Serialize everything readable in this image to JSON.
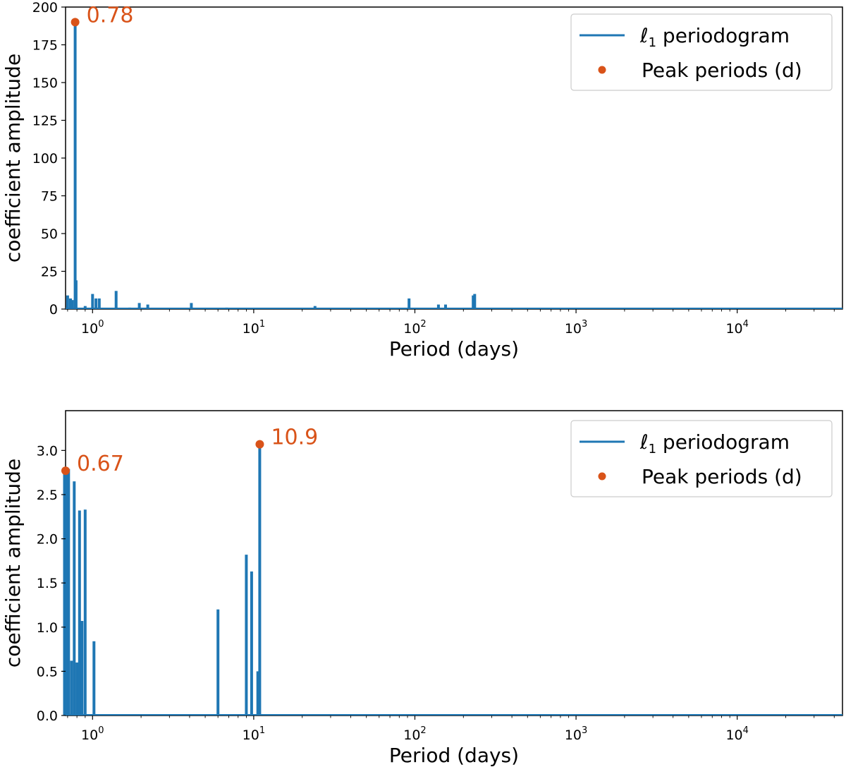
{
  "colors": {
    "series": "#1f77b4",
    "peak": "#d95319",
    "axis": "#000000",
    "legend_border": "#cccccc"
  },
  "chart_data": [
    {
      "type": "line",
      "xscale": "log",
      "xlabel": "Period (days)",
      "ylabel": "coefficient amplitude",
      "xlim": [
        0.68,
        45000
      ],
      "ylim": [
        0,
        200
      ],
      "yticks": [
        0,
        25,
        50,
        75,
        100,
        125,
        150,
        175,
        200
      ],
      "ytick_labels": [
        "0",
        "25",
        "50",
        "75",
        "100",
        "125",
        "150",
        "175",
        "200"
      ],
      "xtick_labels": [
        {
          "base": "10",
          "exp": "0",
          "value": 1
        },
        {
          "base": "10",
          "exp": "1",
          "value": 10
        },
        {
          "base": "10",
          "exp": "2",
          "value": 100
        },
        {
          "base": "10",
          "exp": "3",
          "value": 1000
        },
        {
          "base": "10",
          "exp": "4",
          "value": 10000
        }
      ],
      "legend": {
        "position": "top-right",
        "series_main": "ℓ",
        "series_sub": "1",
        "series_rest": " periodogram",
        "peaks": "Peak periods (d)"
      },
      "series": [
        {
          "name": "l1 periodogram",
          "x": [
            0.7,
            0.73,
            0.75,
            0.78,
            0.79,
            0.9,
            1.0,
            1.05,
            1.1,
            1.4,
            1.7,
            1.95,
            2.2,
            4.1,
            6.8,
            24,
            92,
            140,
            155,
            230,
            235
          ],
          "y": [
            9,
            7,
            6,
            190,
            19,
            2,
            10,
            7,
            7,
            12,
            1,
            4,
            3,
            4,
            1,
            2,
            7,
            3,
            3,
            9,
            10
          ]
        }
      ],
      "peaks": [
        {
          "x": 0.78,
          "y": 190,
          "label": "0.78"
        }
      ]
    },
    {
      "type": "line",
      "xscale": "log",
      "xlabel": "Period (days)",
      "ylabel": "coefficient amplitude",
      "xlim": [
        0.68,
        45000
      ],
      "ylim": [
        0,
        3.45
      ],
      "yticks": [
        0,
        0.5,
        1.0,
        1.5,
        2.0,
        2.5,
        3.0
      ],
      "ytick_labels": [
        "0.0",
        "0.5",
        "1.0",
        "1.5",
        "2.0",
        "2.5",
        "3.0"
      ],
      "xtick_labels": [
        {
          "base": "10",
          "exp": "0",
          "value": 1
        },
        {
          "base": "10",
          "exp": "1",
          "value": 10
        },
        {
          "base": "10",
          "exp": "2",
          "value": 100
        },
        {
          "base": "10",
          "exp": "3",
          "value": 1000
        },
        {
          "base": "10",
          "exp": "4",
          "value": 10000
        }
      ],
      "legend": {
        "position": "top-right",
        "series_main": "ℓ",
        "series_sub": "1",
        "series_rest": " periodogram",
        "peaks": "Peak periods (d)"
      },
      "series": [
        {
          "name": "l1 periodogram",
          "x": [
            0.67,
            0.69,
            0.71,
            0.74,
            0.77,
            0.8,
            0.83,
            0.86,
            0.9,
            1.02,
            6.0,
            9.0,
            9.7,
            10.6,
            10.9
          ],
          "y": [
            2.77,
            2.75,
            2.79,
            0.62,
            2.65,
            0.6,
            2.32,
            1.07,
            2.33,
            0.84,
            1.2,
            1.82,
            1.63,
            0.5,
            3.07
          ]
        }
      ],
      "peaks": [
        {
          "x": 0.67,
          "y": 2.77,
          "label": "0.67"
        },
        {
          "x": 10.9,
          "y": 3.07,
          "label": "10.9"
        }
      ]
    }
  ]
}
